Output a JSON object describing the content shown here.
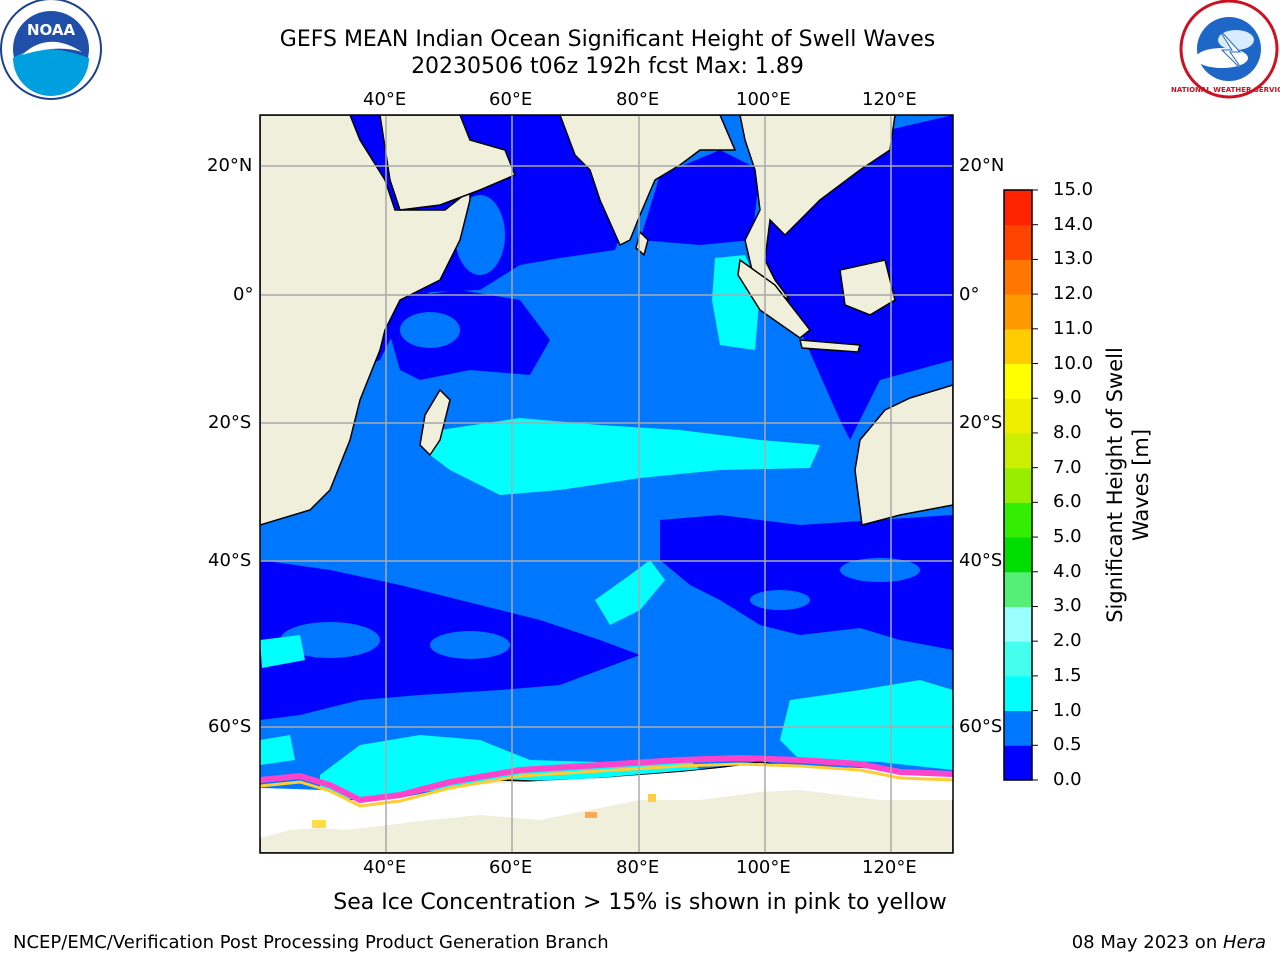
{
  "title": {
    "line1": "GEFS MEAN Indian Ocean Significant Height of Swell Waves",
    "line2": "20230506 t06z 192h fcst   Max: 1.89"
  },
  "logos": {
    "noaa_text": "NOAA",
    "nws_text": "NATIONAL WEATHER SERVICE"
  },
  "map": {
    "lon_range": [
      20,
      130
    ],
    "lat_range": [
      -70,
      28
    ],
    "lon_ticks": [
      "40°E",
      "60°E",
      "80°E",
      "100°E",
      "120°E"
    ],
    "lon_tick_values": [
      40,
      60,
      80,
      100,
      120
    ],
    "lat_ticks": [
      "20°N",
      "0°",
      "20°S",
      "40°S",
      "60°S"
    ],
    "lat_tick_values": [
      20,
      0,
      -20,
      -40,
      -60
    ],
    "colors": {
      "land": "#efefdc",
      "ocean_dark": "#0000ff",
      "ocean_mid": "#0077ff",
      "ocean_cyan": "#00ffff",
      "ocean_light_cyan": "#44ffee",
      "ice_pink": "#ff44cc",
      "ice_yellow": "#ffee00",
      "ice_white": "#ffffff",
      "grid": "#aaaaaa"
    }
  },
  "colorbar": {
    "label": "Significant Height of Swell Waves [m]",
    "label_line1": "Significant Height of Swell",
    "label_line2": "Waves [m]",
    "ticks": [
      "0.0",
      "0.5",
      "1.0",
      "1.5",
      "2.0",
      "3.0",
      "4.0",
      "5.0",
      "6.0",
      "7.0",
      "8.0",
      "9.0",
      "10.0",
      "11.0",
      "12.0",
      "13.0",
      "14.0",
      "15.0"
    ],
    "colors": [
      "#0000ff",
      "#0077ff",
      "#00ffff",
      "#44ffee",
      "#99ffff",
      "#55ee77",
      "#00dd00",
      "#33ee00",
      "#99ee00",
      "#ccee00",
      "#eeee00",
      "#ffff00",
      "#ffcc00",
      "#ff9900",
      "#ff7700",
      "#ff4400",
      "#ff2200"
    ]
  },
  "caption": "Sea Ice Concentration > 15% is shown in pink to yellow",
  "footer": {
    "left": "NCEP/EMC/Verification Post Processing Product Generation Branch",
    "right_prefix": "08 May 2023 on ",
    "right_host": "Hera"
  }
}
